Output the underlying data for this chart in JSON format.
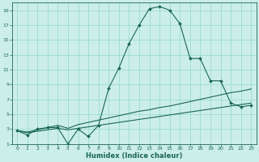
{
  "xlabel": "Humidex (Indice chaleur)",
  "bg_color": "#cceee8",
  "grid_color": "#99ddcc",
  "line_color": "#1a6655",
  "xlim": [
    -0.5,
    23.5
  ],
  "ylim": [
    1,
    20
  ],
  "xticks": [
    0,
    1,
    2,
    3,
    4,
    5,
    6,
    7,
    8,
    9,
    10,
    11,
    12,
    13,
    14,
    15,
    16,
    17,
    18,
    19,
    20,
    21,
    22,
    23
  ],
  "yticks": [
    1,
    3,
    5,
    7,
    9,
    11,
    13,
    15,
    17,
    19
  ],
  "curve1_x": [
    0,
    1,
    2,
    3,
    4,
    5,
    6,
    7,
    8,
    9,
    10,
    11,
    12,
    13,
    14,
    15,
    16,
    17,
    18,
    19,
    20,
    21,
    22,
    23
  ],
  "curve1_y": [
    2.8,
    2.2,
    3.0,
    3.2,
    3.2,
    1.0,
    3.0,
    2.0,
    3.5,
    8.5,
    11.2,
    14.5,
    17.0,
    19.2,
    19.5,
    19.0,
    17.2,
    12.5,
    12.5,
    9.5,
    9.5,
    6.5,
    6.0,
    6.2
  ],
  "curve2_x": [
    0,
    1,
    2,
    3,
    4,
    5,
    6,
    7,
    8,
    9,
    10,
    11,
    12,
    13,
    14,
    15,
    16,
    17,
    18,
    19,
    20,
    21,
    22,
    23
  ],
  "curve2_y": [
    2.8,
    2.6,
    2.9,
    3.2,
    3.5,
    3.1,
    3.6,
    3.9,
    4.2,
    4.5,
    4.8,
    5.1,
    5.4,
    5.6,
    5.9,
    6.1,
    6.4,
    6.7,
    7.0,
    7.3,
    7.6,
    7.9,
    8.1,
    8.4
  ],
  "curve3_x": [
    0,
    1,
    2,
    3,
    4,
    5,
    6,
    7,
    8,
    9,
    10,
    11,
    12,
    13,
    14,
    15,
    16,
    17,
    18,
    19,
    20,
    21,
    22,
    23
  ],
  "curve3_y": [
    2.8,
    2.5,
    2.7,
    2.9,
    3.1,
    2.9,
    3.1,
    3.3,
    3.5,
    3.7,
    3.9,
    4.1,
    4.3,
    4.5,
    4.7,
    4.9,
    5.1,
    5.3,
    5.5,
    5.7,
    5.9,
    6.1,
    6.3,
    6.5
  ]
}
